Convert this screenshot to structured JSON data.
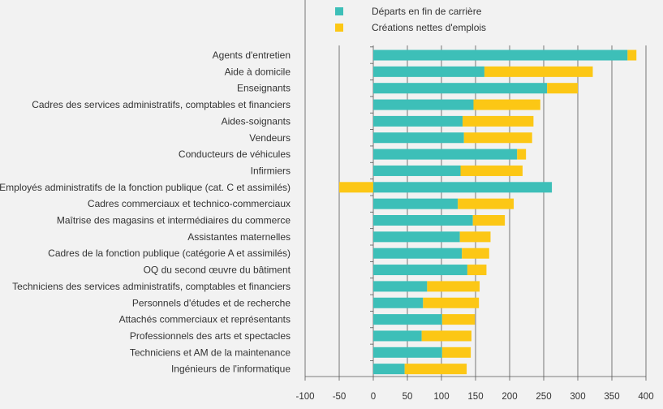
{
  "chart_data": {
    "type": "bar",
    "orientation": "horizontal",
    "stacked": true,
    "categories": [
      "Agents d'entretien",
      "Aide à domicile",
      "Enseignants",
      "Cadres des services administratifs, comptables et financiers",
      "Aides-soignants",
      "Vendeurs",
      "Conducteurs de véhicules",
      "Infirmiers",
      "Employés administratifs de la fonction publique (cat. C et assimilés)",
      "Cadres commerciaux et technico-commerciaux",
      "Maîtrise des magasins et intermédiaires du commerce",
      "Assistantes maternelles",
      "Cadres de la fonction publique (catégorie A et assimilés)",
      "OQ du second œuvre du bâtiment",
      "Techniciens des services administratifs, comptables et financiers",
      "Personnels d'études et de recherche",
      "Attachés commerciaux et représentants",
      "Professionnels des arts et spectacles",
      "Techniciens et AM de la maintenance",
      "Ingénieurs de l'informatique"
    ],
    "series": [
      {
        "name": "Départs en fin de carrière",
        "color": "#3dbfb8",
        "values": [
          373,
          163,
          255,
          147,
          131,
          133,
          211,
          128,
          262,
          124,
          146,
          127,
          130,
          138,
          79,
          73,
          101,
          71,
          101,
          46
        ]
      },
      {
        "name": "Créations nettes d'emplois",
        "color": "#fcc715",
        "values": [
          13,
          159,
          45,
          98,
          104,
          100,
          13,
          91,
          -50,
          82,
          47,
          45,
          40,
          28,
          77,
          82,
          48,
          73,
          42,
          91
        ]
      }
    ],
    "xlim": [
      -100,
      400
    ],
    "xticks": [
      -100,
      -50,
      0,
      50,
      100,
      150,
      200,
      250,
      300,
      350,
      400
    ],
    "grid": "vertical",
    "legend_position": "top"
  }
}
